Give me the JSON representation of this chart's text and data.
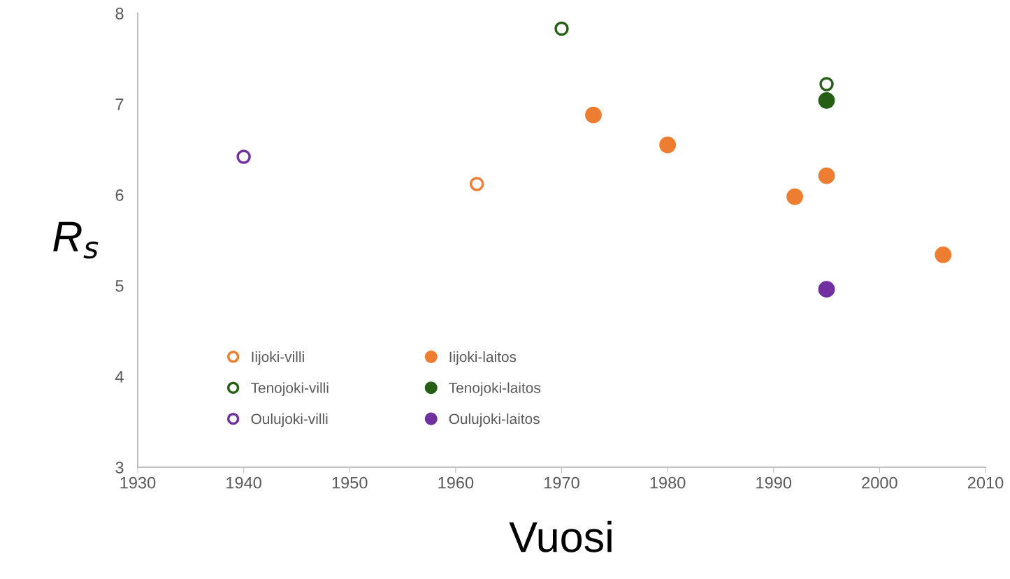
{
  "chart_data": {
    "type": "scatter",
    "xlabel": "Vuosi",
    "ylabel": "R$_{s}$",
    "xlim": [
      1930,
      2010
    ],
    "xticks": [
      1930,
      1940,
      1950,
      1960,
      1970,
      1980,
      1990,
      2000,
      2010
    ],
    "ylim": [
      3,
      8
    ],
    "yticks": [
      3,
      4,
      5,
      6,
      7,
      8
    ],
    "grid": false,
    "legend": "bottom left",
    "series": [
      {
        "name": "Iijoki-villi",
        "color": "#ed7d31",
        "marker": "circle-open",
        "x": [
          1962
        ],
        "values": [
          6.12
        ]
      },
      {
        "name": "Iijoki-laitos",
        "color": "#ed7d31",
        "marker": "circle",
        "x": [
          1973,
          1980,
          1992,
          1995,
          2006
        ],
        "values": [
          6.88,
          6.55,
          5.98,
          6.21,
          5.34
        ]
      },
      {
        "name": "Tenojoki-villi",
        "color": "#255e15",
        "marker": "circle-open",
        "x": [
          1970,
          1995
        ],
        "values": [
          7.83,
          7.22
        ]
      },
      {
        "name": "Tenojoki-laitos",
        "color": "#255e15",
        "marker": "circle",
        "x": [
          1995
        ],
        "values": [
          7.04
        ]
      },
      {
        "name": "Oulujoki-villi",
        "color": "#7030a0",
        "marker": "circle-open",
        "x": [
          1940
        ],
        "values": [
          6.42
        ]
      },
      {
        "name": "Oulujoki-laitos",
        "color": "#7030a0",
        "marker": "circle",
        "x": [
          1995
        ],
        "values": [
          4.96
        ]
      }
    ]
  }
}
